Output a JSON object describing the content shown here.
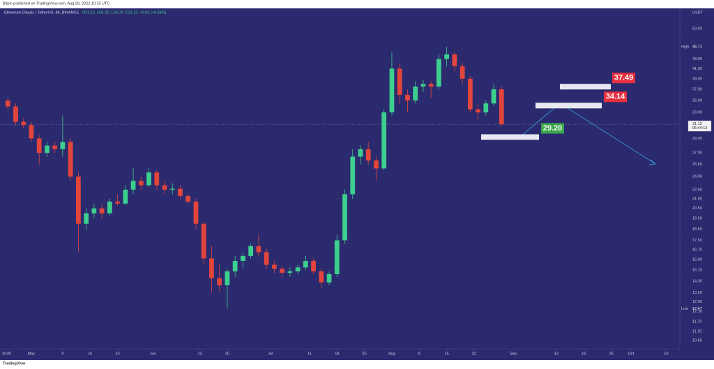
{
  "header": "Bitpin published on TradingView.com, Aug 29, 2022 10:15 UTC",
  "footer": "TradingView",
  "chart_data": {
    "type": "candlestick",
    "title": "Ethereum Classic / TetherUS, 8h, BINANCE",
    "ohlc_text": [
      "O31.12",
      "H31.20",
      "L30.79",
      "C31.12",
      "+0.01 (+0.03%)"
    ],
    "y_unit": "USDT",
    "log_scale": true,
    "grid": false,
    "up_color": "#3ccf8e",
    "down_color": "#e2453c",
    "background": "#2c2a6e",
    "x": [
      "2022-04-24",
      "2022-04-26",
      "2022-04-28",
      "2022-04-30",
      "2022-05-02",
      "2022-05-04",
      "2022-05-06",
      "2022-05-08",
      "2022-05-10",
      "2022-05-12",
      "2022-05-14",
      "2022-05-16",
      "2022-05-18",
      "2022-05-20",
      "2022-05-22",
      "2022-05-24",
      "2022-05-26",
      "2022-05-28",
      "2022-05-30",
      "2022-06-01",
      "2022-06-03",
      "2022-06-05",
      "2022-06-07",
      "2022-06-09",
      "2022-06-11",
      "2022-06-13",
      "2022-06-15",
      "2022-06-17",
      "2022-06-19",
      "2022-06-21",
      "2022-06-23",
      "2022-06-25",
      "2022-06-27",
      "2022-06-29",
      "2022-07-01",
      "2022-07-03",
      "2022-07-05",
      "2022-07-07",
      "2022-07-09",
      "2022-07-11",
      "2022-07-13",
      "2022-07-15",
      "2022-07-17",
      "2022-07-19",
      "2022-07-21",
      "2022-07-23",
      "2022-07-25",
      "2022-07-27",
      "2022-07-29",
      "2022-07-31",
      "2022-08-02",
      "2022-08-04",
      "2022-08-06",
      "2022-08-08",
      "2022-08-10",
      "2022-08-12",
      "2022-08-14",
      "2022-08-16",
      "2022-08-18",
      "2022-08-20",
      "2022-08-22",
      "2022-08-24",
      "2022-08-26",
      "2022-08-28"
    ],
    "open": [
      35,
      34,
      31.5,
      31,
      29,
      27,
      28,
      27.5,
      28.5,
      24,
      19,
      20,
      20.5,
      20,
      21.2,
      21,
      22.5,
      23.5,
      23,
      24.5,
      23,
      22.5,
      22.6,
      21.8,
      21.2,
      19,
      16,
      14.5,
      14,
      15,
      15.8,
      16.2,
      17,
      16.5,
      15.5,
      15.2,
      14.9,
      15,
      15.3,
      15.8,
      15,
      14.2,
      14.8,
      17.5,
      22,
      26.5,
      27.5,
      26,
      25,
      33,
      41,
      36,
      35,
      37.5,
      38,
      37.5,
      43,
      44,
      41.5,
      39,
      33.5,
      33,
      34.5,
      37
    ],
    "high": [
      35.5,
      34.5,
      32,
      31.5,
      29.5,
      28.5,
      28.5,
      32.5,
      29,
      24.5,
      20.5,
      21,
      21,
      21.5,
      22,
      23,
      25,
      24,
      25,
      24.8,
      23.5,
      23.2,
      23,
      22,
      21.5,
      19.2,
      17,
      15.5,
      15.2,
      16.2,
      16.5,
      17.2,
      18,
      16.8,
      15.8,
      15.4,
      15.3,
      15.5,
      16.2,
      16,
      15.2,
      15,
      18,
      22.5,
      27.5,
      28,
      28.5,
      26.5,
      33.5,
      44.5,
      42,
      37,
      38.5,
      38.8,
      38.5,
      44,
      45.71,
      44.5,
      42.2,
      39.5,
      34.5,
      35,
      38,
      37.5
    ],
    "low": [
      33.5,
      31,
      30.5,
      28.5,
      25.5,
      26.5,
      27,
      26.5,
      23.5,
      16.5,
      18.5,
      19.5,
      19.5,
      19.8,
      20.8,
      20.8,
      22,
      22.5,
      22.8,
      22.5,
      22,
      22,
      21.5,
      21,
      18.5,
      15.5,
      13.5,
      13.6,
      12.47,
      14.6,
      15.2,
      16,
      16.2,
      15.2,
      14.9,
      14.6,
      14.6,
      14.8,
      15.1,
      14.8,
      13.8,
      14,
      14.6,
      17.2,
      21.5,
      25.5,
      25.5,
      23.5,
      24.8,
      32.5,
      34.5,
      33,
      34.5,
      36.5,
      35.5,
      37,
      41.5,
      40.5,
      38,
      33,
      31.8,
      32.5,
      34,
      30.79
    ],
    "close": [
      34,
      31.5,
      31,
      29,
      27,
      28,
      27.5,
      28.5,
      24,
      19,
      20,
      20.5,
      20,
      21.2,
      21,
      22.5,
      23.5,
      23,
      24.5,
      23,
      22.5,
      22.6,
      21.8,
      21.2,
      19,
      16,
      14.5,
      14,
      15,
      15.8,
      16.2,
      17,
      16.5,
      15.5,
      15.2,
      14.9,
      15,
      15.3,
      15.8,
      15,
      14.2,
      14.8,
      17.5,
      22,
      26.5,
      27.5,
      26,
      25,
      33,
      41,
      36,
      35,
      37.5,
      38,
      37.5,
      43,
      44,
      41.5,
      39,
      33.5,
      33,
      34.5,
      37,
      31.12
    ],
    "xlim": [
      "2022-04-23T00:00",
      "2022-10-13T12:00"
    ],
    "xticks": [
      {
        "value": "2022-04-24T16:00",
        "label": "16:00"
      },
      {
        "value": "2022-05-01",
        "label": "May"
      },
      {
        "value": "2022-05-09",
        "label": "9"
      },
      {
        "value": "2022-05-16",
        "label": "16"
      },
      {
        "value": "2022-05-23",
        "label": "23"
      },
      {
        "value": "2022-06-01",
        "label": "Jun"
      },
      {
        "value": "2022-06-13",
        "label": "13"
      },
      {
        "value": "2022-06-20",
        "label": "20"
      },
      {
        "value": "2022-07-01",
        "label": "Jul"
      },
      {
        "value": "2022-07-11",
        "label": "11"
      },
      {
        "value": "2022-07-18",
        "label": "18"
      },
      {
        "value": "2022-07-25",
        "label": "25"
      },
      {
        "value": "2022-08-01",
        "label": "Aug"
      },
      {
        "value": "2022-08-08",
        "label": "8"
      },
      {
        "value": "2022-08-15",
        "label": "15"
      },
      {
        "value": "2022-08-22",
        "label": "22"
      },
      {
        "value": "2022-09-01",
        "label": "Sep"
      },
      {
        "value": "2022-09-12",
        "label": "12"
      },
      {
        "value": "2022-09-19",
        "label": "19"
      },
      {
        "value": "2022-09-26",
        "label": "26"
      },
      {
        "value": "2022-10-01",
        "label": "Oct"
      },
      {
        "value": "2022-10-10",
        "label": "10"
      }
    ],
    "ylim": [
      10.22,
      55.28
    ],
    "yticks": [
      {
        "value": 50,
        "label": "50.00"
      },
      {
        "value": 43,
        "label": "43.00"
      },
      {
        "value": 41,
        "label": "41.00"
      },
      {
        "value": 39,
        "label": "39.00"
      },
      {
        "value": 37,
        "label": "37.00"
      },
      {
        "value": 35,
        "label": "35.00"
      },
      {
        "value": 33,
        "label": "33.00"
      },
      {
        "value": 29,
        "label": "29.00"
      },
      {
        "value": 27,
        "label": "27.00"
      },
      {
        "value": 25.5,
        "label": "25.50"
      },
      {
        "value": 24,
        "label": "24.00"
      },
      {
        "value": 22.5,
        "label": "22.50"
      },
      {
        "value": 21.5,
        "label": "21.50"
      },
      {
        "value": 20.5,
        "label": "20.50"
      },
      {
        "value": 19.5,
        "label": "19.50"
      },
      {
        "value": 18.5,
        "label": "18.50"
      },
      {
        "value": 17.5,
        "label": "17.50"
      },
      {
        "value": 16.7,
        "label": "16.70"
      },
      {
        "value": 15.9,
        "label": "15.90"
      },
      {
        "value": 15.1,
        "label": "15.10"
      },
      {
        "value": 14.3,
        "label": "14.30"
      },
      {
        "value": 13.5,
        "label": "13.50"
      },
      {
        "value": 12.9,
        "label": "12.90"
      },
      {
        "value": 12.3,
        "label": "12.30"
      },
      {
        "value": 11.7,
        "label": "11.70"
      },
      {
        "value": 11.15,
        "label": "11.15"
      },
      {
        "value": 10.65,
        "label": "10.65"
      }
    ],
    "high_marker": {
      "label": "High",
      "value": 45.71
    },
    "low_marker": {
      "label": "Low",
      "value": 12.47
    },
    "last_price": {
      "value": 31.12,
      "countdown": "05:44:12"
    },
    "annotations": [
      {
        "value": 37.49,
        "color": "#e8303f"
      },
      {
        "value": 34.14,
        "color": "#e8303f"
      },
      {
        "value": 29.2,
        "label": "29.20",
        "color": "#3aa84a"
      }
    ]
  }
}
